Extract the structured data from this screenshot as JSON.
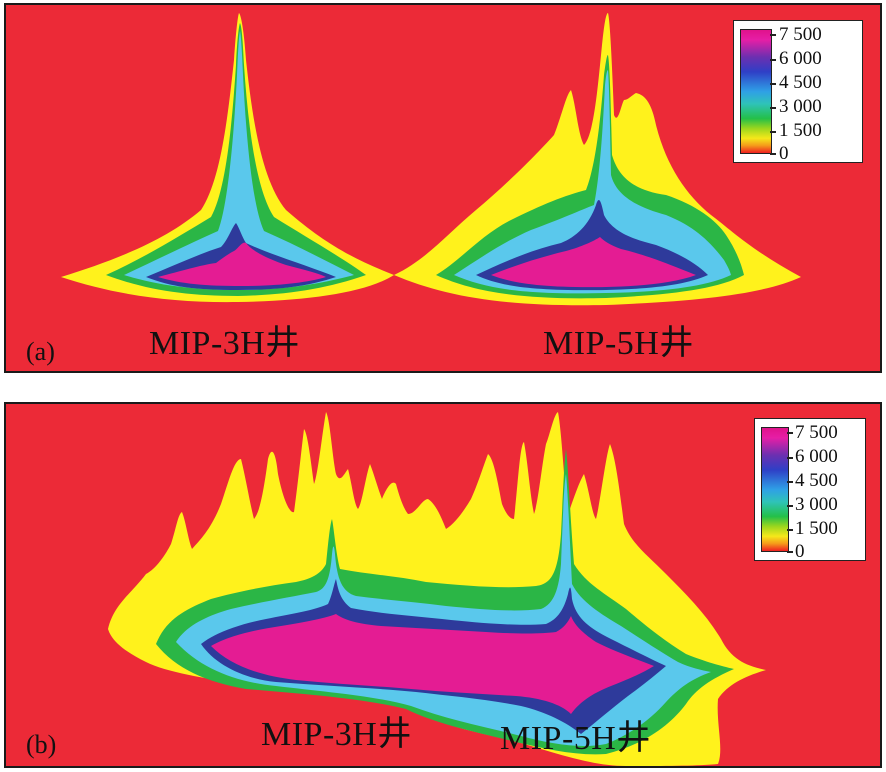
{
  "figure": {
    "panel_a": {
      "label": "(a)",
      "wells": [
        "MIP-3H井",
        "MIP-5H井"
      ],
      "legend": [
        "7 500",
        "6 000",
        "4 500",
        "3 000",
        "1 500",
        "0"
      ]
    },
    "panel_b": {
      "label": "(b)",
      "wells": [
        "MIP-3H井",
        "MIP-5H井"
      ],
      "legend": [
        "7 500",
        "6 000",
        "4 500",
        "3 000",
        "1 500",
        "0"
      ]
    }
  },
  "colors": {
    "background": "#ec2a37",
    "c1500": "#fff21c",
    "c3000": "#2bb646",
    "c4500": "#5ac8ec",
    "c6000": "#2e3a9b",
    "c7500": "#e41c93"
  }
}
